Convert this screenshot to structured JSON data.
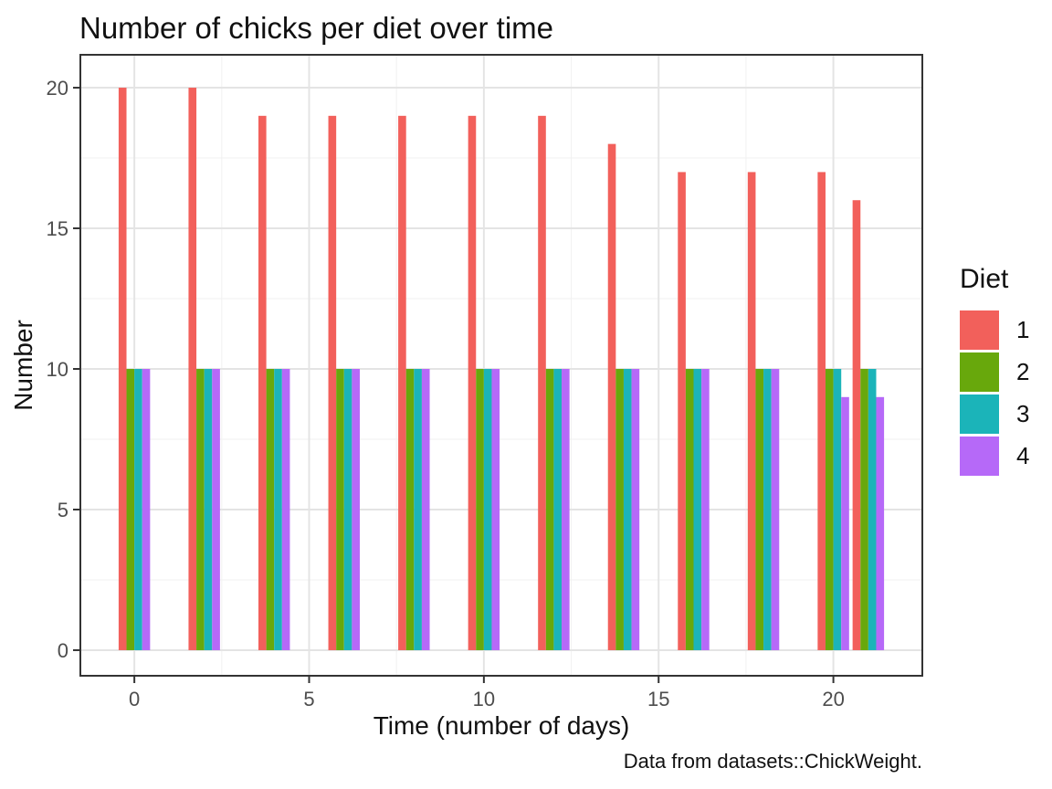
{
  "title": "Number of chicks per diet over time",
  "caption": "Data from datasets::ChickWeight.",
  "chart_data": {
    "type": "bar",
    "grouping": "dodge",
    "title": "Number of chicks per diet over time",
    "xlabel": "Time (number of days)",
    "ylabel": "Number",
    "legend_title": "Diet",
    "legend_position": "right",
    "x": [
      0,
      2,
      4,
      6,
      8,
      10,
      12,
      14,
      16,
      18,
      20,
      21
    ],
    "series": [
      {
        "name": "1",
        "color": "#F2605B",
        "values": [
          20,
          20,
          19,
          19,
          19,
          19,
          19,
          18,
          17,
          17,
          17,
          16
        ]
      },
      {
        "name": "2",
        "color": "#68A80C",
        "values": [
          10,
          10,
          10,
          10,
          10,
          10,
          10,
          10,
          10,
          10,
          10,
          10
        ]
      },
      {
        "name": "3",
        "color": "#1BB4B9",
        "values": [
          10,
          10,
          10,
          10,
          10,
          10,
          10,
          10,
          10,
          10,
          10,
          10
        ]
      },
      {
        "name": "4",
        "color": "#B669F8",
        "values": [
          10,
          10,
          10,
          10,
          10,
          10,
          10,
          10,
          10,
          10,
          9,
          9
        ]
      }
    ],
    "x_ticks": [
      0,
      5,
      10,
      15,
      20
    ],
    "y_ticks": [
      0,
      5,
      10,
      15,
      20
    ],
    "x_minor": [
      2.5,
      7.5,
      12.5,
      17.5
    ],
    "y_minor": [
      2.5,
      7.5,
      12.5,
      17.5
    ],
    "xlim": [
      -1.545,
      22.545
    ],
    "ylim": [
      -0.91,
      21.17
    ],
    "bar_width": 0.225,
    "group_width": 0.9,
    "grid": true,
    "style": {
      "grid_major": "#E4E4E4",
      "grid_minor": "#F1F1F1",
      "panel_border": "#333333",
      "tick_color": "#333333",
      "axis_text_color": "#4D4D4D",
      "background": "#FFFFFF"
    }
  }
}
